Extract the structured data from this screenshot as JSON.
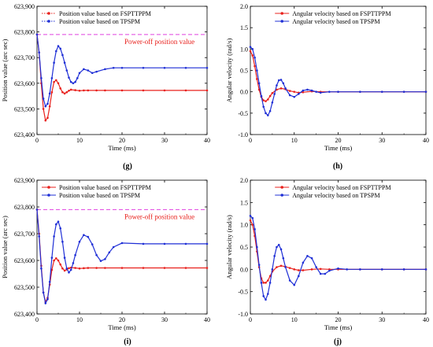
{
  "chart_data": [
    {
      "type": "line",
      "panel_label": "(g)",
      "xlabel": "Time (ms)",
      "ylabel": "Position value (arc sec)",
      "xlim": [
        0,
        40
      ],
      "ylim": [
        623400,
        623900
      ],
      "xticks": [
        0,
        10,
        20,
        30,
        40
      ],
      "yticks": [
        623400,
        623500,
        623600,
        623700,
        623800,
        623900
      ],
      "ytick_labels": [
        "623,400",
        "623,500",
        "623,600",
        "623,700",
        "623,800",
        "623,900"
      ],
      "legend_position": "top-left",
      "annotation": "Power-off position value",
      "reference_line": 623790,
      "series": [
        {
          "name": "Position value based on FSPTTPPM",
          "color": "#e8201c",
          "x": [
            0,
            0.5,
            1,
            1.5,
            2,
            2.5,
            3,
            3.5,
            4,
            4.5,
            5,
            5.5,
            6,
            6.5,
            7,
            7.5,
            8,
            9,
            10,
            11,
            12,
            14,
            16,
            20,
            25,
            30,
            35,
            40
          ],
          "y": [
            623790,
            623720,
            623600,
            623500,
            623455,
            623465,
            623510,
            623565,
            623605,
            623612,
            623600,
            623580,
            623565,
            623560,
            623565,
            623571,
            623575,
            623573,
            623571,
            623572,
            623572,
            623572,
            623572,
            623572,
            623572,
            623572,
            623572,
            623572
          ]
        },
        {
          "name": "Position value based on TPSPM",
          "color": "#1f2fd6",
          "x": [
            0,
            0.5,
            1,
            1.5,
            2,
            2.5,
            3,
            3.5,
            4,
            4.5,
            5,
            5.5,
            6,
            6.5,
            7,
            7.5,
            8,
            8.5,
            9,
            9.5,
            10,
            11,
            12,
            13,
            14,
            16,
            18,
            20,
            25,
            30,
            35,
            40
          ],
          "y": [
            623790,
            623720,
            623620,
            623540,
            623510,
            623520,
            623560,
            623620,
            623680,
            623725,
            623745,
            623735,
            623710,
            623680,
            623650,
            623622,
            623605,
            623600,
            623605,
            623620,
            623640,
            623655,
            623650,
            623640,
            623645,
            623655,
            623660,
            623660,
            623660,
            623660,
            623660,
            623660
          ]
        }
      ]
    },
    {
      "type": "line",
      "panel_label": "(h)",
      "xlabel": "Time (ms)",
      "ylabel": "Angular velocity (rad/s)",
      "xlim": [
        0,
        40
      ],
      "ylim": [
        -1.0,
        2.0
      ],
      "xticks": [
        0,
        10,
        20,
        30,
        40
      ],
      "yticks": [
        -1.0,
        -0.5,
        0.0,
        0.5,
        1.0,
        1.5,
        2.0
      ],
      "ytick_labels": [
        "-1.0",
        "-0.5",
        "0.0",
        "0.5",
        "1.0",
        "1.5",
        "2.0"
      ],
      "legend_position": "top-center",
      "series": [
        {
          "name": "Angular velocity based on FSPTTPPM",
          "color": "#e8201c",
          "x": [
            0,
            0.5,
            1,
            1.5,
            2,
            2.5,
            3,
            3.5,
            4,
            4.5,
            5,
            6,
            7,
            8,
            9,
            10,
            11,
            12,
            14,
            16,
            20,
            25,
            30,
            35,
            40
          ],
          "y": [
            0.95,
            0.85,
            0.6,
            0.3,
            0.05,
            -0.12,
            -0.2,
            -0.22,
            -0.18,
            -0.1,
            -0.03,
            0.05,
            0.08,
            0.06,
            0.02,
            0.0,
            -0.02,
            -0.01,
            0.01,
            0.0,
            0.0,
            0.0,
            0.0,
            0.0,
            0.0
          ]
        },
        {
          "name": "Angular velocity  based on TPSPM",
          "color": "#1f2fd6",
          "x": [
            0,
            0.5,
            1,
            1.5,
            2,
            2.5,
            3,
            3.5,
            4,
            4.5,
            5,
            5.5,
            6,
            6.5,
            7,
            7.5,
            8,
            9,
            10,
            11,
            12,
            13,
            14,
            15,
            16,
            18,
            20,
            25,
            30,
            35,
            40
          ],
          "y": [
            1.05,
            1.0,
            0.8,
            0.5,
            0.2,
            -0.1,
            -0.35,
            -0.5,
            -0.55,
            -0.45,
            -0.25,
            -0.05,
            0.15,
            0.27,
            0.28,
            0.2,
            0.08,
            -0.08,
            -0.12,
            -0.05,
            0.03,
            0.05,
            0.03,
            0.0,
            -0.02,
            0.0,
            0.0,
            0.0,
            0.0,
            0.0,
            0.0
          ]
        }
      ]
    },
    {
      "type": "line",
      "panel_label": "(i)",
      "xlabel": "Time (ms)",
      "ylabel": "Position value (arc sec)",
      "xlim": [
        0,
        40
      ],
      "ylim": [
        623400,
        623900
      ],
      "xticks": [
        0,
        10,
        20,
        30,
        40
      ],
      "yticks": [
        623400,
        623500,
        623600,
        623700,
        623800,
        623900
      ],
      "ytick_labels": [
        "623,400",
        "623,500",
        "623,600",
        "623,700",
        "623,800",
        "623,900"
      ],
      "legend_position": "top-left",
      "annotation": "Power-off position value",
      "reference_line": 623790,
      "series": [
        {
          "name": "Position value based on FSPTTPPM",
          "color": "#e8201c",
          "x": [
            0,
            0.5,
            1,
            1.5,
            2,
            2.5,
            3,
            3.5,
            4,
            4.5,
            5,
            5.5,
            6,
            6.5,
            7,
            7.5,
            8,
            9,
            10,
            11,
            12,
            14,
            16,
            20,
            25,
            30,
            35,
            40
          ],
          "y": [
            623790,
            623700,
            623580,
            623480,
            623445,
            623460,
            623510,
            623565,
            623600,
            623608,
            623600,
            623585,
            623570,
            623562,
            623566,
            623571,
            623573,
            623572,
            623570,
            623571,
            623572,
            623572,
            623572,
            623572,
            623572,
            623572,
            623572,
            623572
          ]
        },
        {
          "name": "Position value based on TPSPM",
          "color": "#1f2fd6",
          "x": [
            0,
            0.5,
            1,
            1.5,
            2,
            2.5,
            3,
            3.5,
            4,
            4.5,
            5,
            5.5,
            6,
            6.5,
            7,
            7.5,
            8,
            8.5,
            9,
            10,
            11,
            12,
            13,
            14,
            15,
            16,
            17,
            18,
            20,
            25,
            30,
            35,
            40
          ],
          "y": [
            623790,
            623690,
            623570,
            623480,
            623440,
            623455,
            623520,
            623610,
            623690,
            623735,
            623745,
            623720,
            623670,
            623610,
            623570,
            623555,
            623565,
            623590,
            623620,
            623670,
            623695,
            623688,
            623660,
            623620,
            623598,
            623605,
            623630,
            623650,
            623665,
            623662,
            623662,
            623662,
            623662
          ]
        }
      ]
    },
    {
      "type": "line",
      "panel_label": "(j)",
      "xlabel": "Time (ms)",
      "ylabel": "Angular velocity (rad/s)",
      "xlim": [
        0,
        40
      ],
      "ylim": [
        -1.0,
        2.0
      ],
      "xticks": [
        0,
        10,
        20,
        30,
        40
      ],
      "yticks": [
        -1.0,
        -0.5,
        0.0,
        0.5,
        1.0,
        1.5,
        2.0
      ],
      "ytick_labels": [
        "-1.0",
        "-0.5",
        "0.0",
        "0.5",
        "1.0",
        "1.5",
        "2.0"
      ],
      "legend_position": "top-center",
      "series": [
        {
          "name": "Angular velocity  based on FSPTTPPM",
          "color": "#e8201c",
          "x": [
            0,
            0.5,
            1,
            1.5,
            2,
            2.5,
            3,
            3.5,
            4,
            4.5,
            5,
            6,
            7,
            8,
            9,
            10,
            11,
            12,
            14,
            16,
            18,
            20,
            25,
            30,
            35,
            40
          ],
          "y": [
            1.1,
            1.0,
            0.75,
            0.4,
            0.05,
            -0.2,
            -0.3,
            -0.3,
            -0.25,
            -0.15,
            -0.05,
            0.05,
            0.08,
            0.06,
            0.03,
            0.0,
            -0.02,
            -0.02,
            0.0,
            0.01,
            0.0,
            0.0,
            0.0,
            0.0,
            0.0,
            0.0
          ]
        },
        {
          "name": "Angular velocity  based on TPSPM",
          "color": "#1f2fd6",
          "x": [
            0,
            0.5,
            1,
            1.5,
            2,
            2.5,
            3,
            3.5,
            4,
            4.5,
            5,
            5.5,
            6,
            6.5,
            7,
            7.5,
            8,
            9,
            10,
            11,
            12,
            13,
            14,
            15,
            16,
            17,
            18,
            20,
            22,
            25,
            30,
            35,
            40
          ],
          "y": [
            1.2,
            1.15,
            0.9,
            0.5,
            0.1,
            -0.3,
            -0.6,
            -0.68,
            -0.55,
            -0.3,
            0.0,
            0.3,
            0.5,
            0.55,
            0.45,
            0.25,
            0.05,
            -0.25,
            -0.35,
            -0.15,
            0.15,
            0.3,
            0.25,
            0.05,
            -0.1,
            -0.1,
            -0.03,
            0.02,
            0.0,
            0.0,
            0.0,
            0.0,
            0.0
          ]
        }
      ]
    }
  ]
}
